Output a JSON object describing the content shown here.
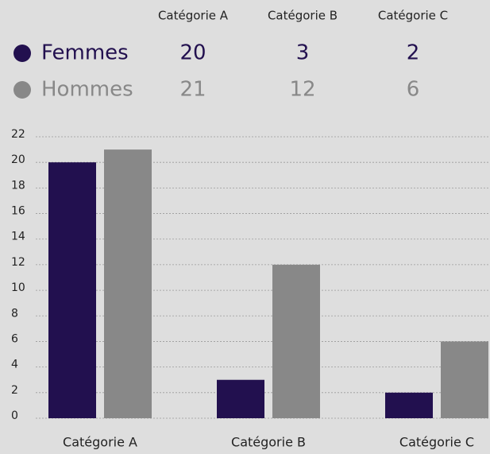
{
  "chart_data": {
    "type": "bar",
    "categories": [
      "Catégorie A",
      "Catégorie B",
      "Catégorie C"
    ],
    "series": [
      {
        "name": "Femmes",
        "color": "#22104f",
        "values": [
          20,
          3,
          2
        ]
      },
      {
        "name": "Hommes",
        "color": "#888888",
        "values": [
          21,
          12,
          6
        ]
      }
    ],
    "ylim": [
      0,
      22
    ],
    "yticks": [
      0,
      2,
      4,
      6,
      8,
      10,
      12,
      14,
      16,
      18,
      20,
      22
    ],
    "grid": true,
    "legend": "top"
  }
}
